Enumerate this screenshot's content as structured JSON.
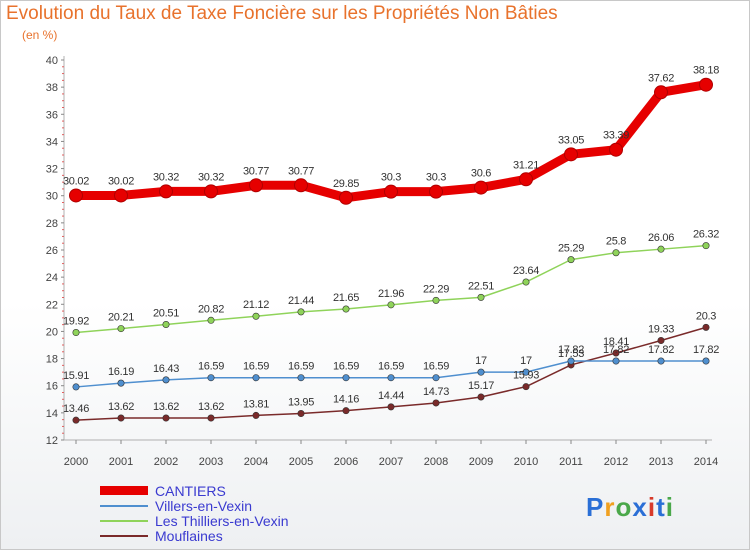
{
  "title": "Evolution du Taux de Taxe Foncière sur les Propriétés Non Bâties",
  "subtitle": "(en %)",
  "logo": {
    "text": "Proxiti",
    "colors": [
      "#2a6fd6",
      "#f0a020",
      "#4aa84a",
      "#2a6fd6",
      "#d83a2a",
      "#2a6fd6",
      "#4aa84a"
    ]
  },
  "chart_data": {
    "type": "line",
    "x": [
      2000,
      2001,
      2002,
      2003,
      2004,
      2005,
      2006,
      2007,
      2008,
      2009,
      2010,
      2011,
      2012,
      2013,
      2014
    ],
    "ylim": [
      12,
      40
    ],
    "yticks": [
      12,
      14,
      16,
      18,
      20,
      22,
      24,
      26,
      28,
      30,
      32,
      34,
      36,
      38,
      40
    ],
    "grid": false,
    "legend": "bottom-left",
    "series": [
      {
        "name": "CANTIERS",
        "color": "#e60000",
        "values": [
          30.02,
          30.02,
          30.32,
          30.32,
          30.77,
          30.77,
          29.85,
          30.3,
          30.3,
          30.6,
          31.21,
          33.05,
          33.39,
          37.62,
          38.18
        ],
        "labels": [
          "30.02",
          "30.02",
          "30.32",
          "30.32",
          "30.77",
          "30.77",
          "29.85",
          "30.3",
          "30.3",
          "30.6",
          "31.21",
          "33.05",
          "33.39",
          "37.62",
          "38.18"
        ]
      },
      {
        "name": "Villers-en-Vexin",
        "color": "#4f8fcf",
        "values": [
          15.91,
          16.19,
          16.43,
          16.59,
          16.59,
          16.59,
          16.59,
          16.59,
          16.59,
          17,
          17,
          17.82,
          17.82,
          17.82,
          17.82
        ],
        "labels": [
          "15.91",
          "16.19",
          "16.43",
          "16.59",
          "16.59",
          "16.59",
          "16.59",
          "16.59",
          "16.59",
          "17",
          "17",
          "17.82",
          "17.82",
          "17.82",
          "17.82"
        ]
      },
      {
        "name": "Les Thilliers-en-Vexin",
        "color": "#8fd35a",
        "values": [
          19.92,
          20.21,
          20.51,
          20.82,
          21.12,
          21.44,
          21.65,
          21.96,
          22.29,
          22.51,
          23.64,
          25.29,
          25.8,
          26.06,
          26.32
        ],
        "labels": [
          "19.92",
          "20.21",
          "20.51",
          "20.82",
          "21.12",
          "21.44",
          "21.65",
          "21.96",
          "22.29",
          "22.51",
          "23.64",
          "25.29",
          "25.8",
          "26.06",
          "26.32"
        ]
      },
      {
        "name": "Mouflaines",
        "color": "#7a2a2a",
        "values": [
          13.46,
          13.62,
          13.62,
          13.62,
          13.81,
          13.95,
          14.16,
          14.44,
          14.73,
          15.17,
          15.93,
          17.53,
          18.41,
          19.33,
          20.3
        ],
        "labels": [
          "13.46",
          "13.62",
          "13.62",
          "13.62",
          "13.81",
          "13.95",
          "14.16",
          "14.44",
          "14.73",
          "15.17",
          "15.93",
          "17.53",
          "18.41",
          "19.33",
          "20.3"
        ]
      }
    ]
  }
}
